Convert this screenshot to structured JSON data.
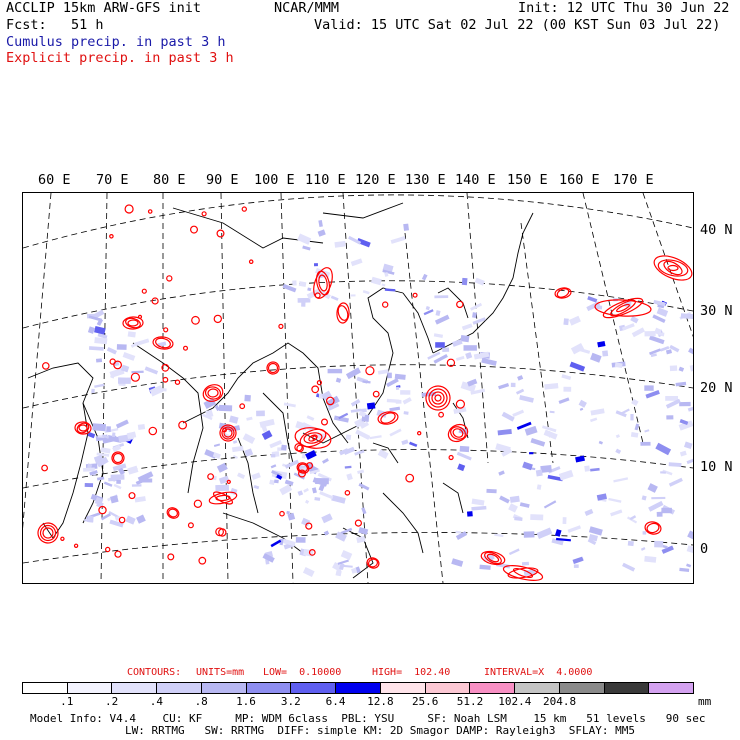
{
  "header": {
    "model_line": "ACCLIP 15km ARW-GFS init",
    "center_title": "NCAR/MMM",
    "init": "Init: 12 UTC Thu 30 Jun 22",
    "fcst": "Fcst:   51 h",
    "valid": "Valid: 15 UTC Sat 02 Jul 22 (00 KST Sun 03 Jul 22)",
    "cumulus": "Cumulus precip. in past 3 h",
    "explicit": "Explicit precip. in past 3 h"
  },
  "map": {
    "longitude_labels": [
      "60 E",
      "70 E",
      "80 E",
      "90 E",
      "100 E",
      "110 E",
      "120 E",
      "130 E",
      "140 E",
      "150 E",
      "160 E",
      "170 E"
    ],
    "latitude_labels": [
      "40 N",
      "30 N",
      "20 N",
      "10 N",
      "0"
    ],
    "colors": {
      "cumulus": "#2a2ae0",
      "explicit": "#ff0000",
      "coast": "#000000"
    }
  },
  "contour_info": {
    "contours": "CONTOURS:",
    "units": "UNITS=mm",
    "low": "LOW=  0.10000",
    "high": "HIGH=  102.40",
    "interval": "INTERVAL=X  4.0000"
  },
  "legend": {
    "colors": [
      "#ffffff",
      "#f3f3fe",
      "#e2e2fb",
      "#d0d0f8",
      "#b8b8f2",
      "#8e8ef0",
      "#5f5ff0",
      "#0000ee",
      "#ffe4ea",
      "#fcc8d4",
      "#f890c4",
      "#c4c4c4",
      "#8a8a8a",
      "#3a3a3a",
      "#d4a2f0"
    ],
    "ticks": [
      ".1",
      ".2",
      ".4",
      ".8",
      "1.6",
      "3.2",
      "6.4",
      "12.8",
      "25.6",
      "51.2",
      "102.4",
      "204.8"
    ],
    "unit": "mm"
  },
  "footer": {
    "line1": "Model Info: V4.4    CU: KF     MP: WDM 6class  PBL: YSU     SF: Noah LSM    15 km   51 levels   90 sec",
    "line2": "LW: RRTMG   SW: RRTMG  DIFF: simple KM: 2D Smagor DAMP: Rayleigh3  SFLAY: MM5"
  }
}
